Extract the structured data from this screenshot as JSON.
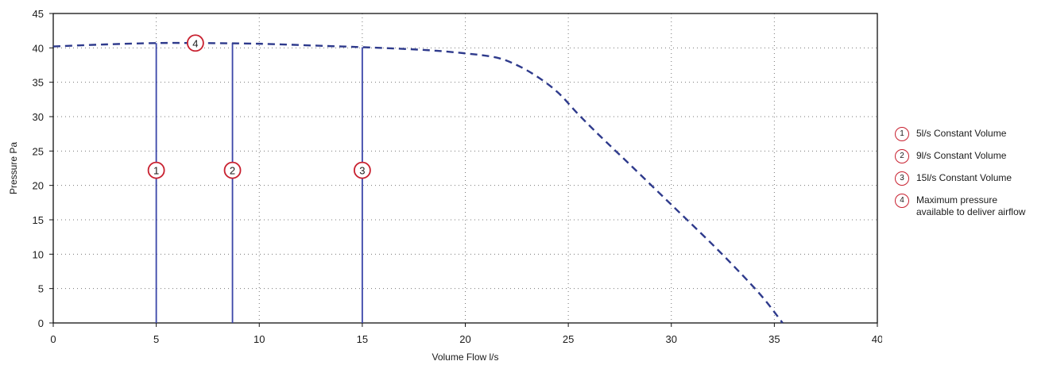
{
  "chart_data": {
    "type": "line",
    "xlabel": "Volume Flow l/s",
    "ylabel": "Pressure Pa",
    "xlim": [
      0,
      40
    ],
    "ylim": [
      0,
      45
    ],
    "xticks": [
      0,
      5,
      10,
      15,
      20,
      25,
      30,
      35,
      40
    ],
    "yticks": [
      0,
      5,
      10,
      15,
      20,
      25,
      30,
      35,
      40,
      45
    ],
    "grid": "dotted",
    "legend_position": "right",
    "curve": {
      "style": "dashed",
      "color": "#2e3a8c",
      "points": [
        [
          0,
          40.2
        ],
        [
          2.5,
          40.5
        ],
        [
          5,
          40.7
        ],
        [
          7,
          40.7
        ],
        [
          10,
          40.6
        ],
        [
          13,
          40.3
        ],
        [
          15,
          40.1
        ],
        [
          18,
          39.7
        ],
        [
          20,
          39.2
        ],
        [
          21.5,
          38.6
        ],
        [
          22.5,
          37.5
        ],
        [
          23.5,
          35.8
        ],
        [
          24.5,
          33.5
        ],
        [
          25.5,
          30.3
        ],
        [
          26.5,
          27.3
        ],
        [
          28,
          23
        ],
        [
          30,
          17.2
        ],
        [
          32,
          11.4
        ],
        [
          33.5,
          6.8
        ],
        [
          34.5,
          3.5
        ],
        [
          35.4,
          0
        ]
      ]
    },
    "vertical_lines": [
      {
        "x": 5,
        "top": 40.7,
        "color": "#3a45a8"
      },
      {
        "x": 8.7,
        "top": 40.7,
        "color": "#3a45a8"
      },
      {
        "x": 15,
        "top": 40.1,
        "color": "#3a45a8"
      }
    ],
    "markers": [
      {
        "label": "1",
        "x": 5,
        "y": 22.2
      },
      {
        "label": "2",
        "x": 8.7,
        "y": 22.2
      },
      {
        "label": "3",
        "x": 15,
        "y": 22.2
      },
      {
        "label": "4",
        "x": 6.9,
        "y": 40.7
      }
    ],
    "marker_color": "#c8202f"
  },
  "legend": {
    "items": [
      {
        "badge": "1",
        "text": "5l/s Constant Volume"
      },
      {
        "badge": "2",
        "text": "9l/s Constant Volume"
      },
      {
        "badge": "3",
        "text": "15l/s Constant Volume"
      },
      {
        "badge": "4",
        "text": "Maximum pressure available to deliver airflow"
      }
    ]
  }
}
